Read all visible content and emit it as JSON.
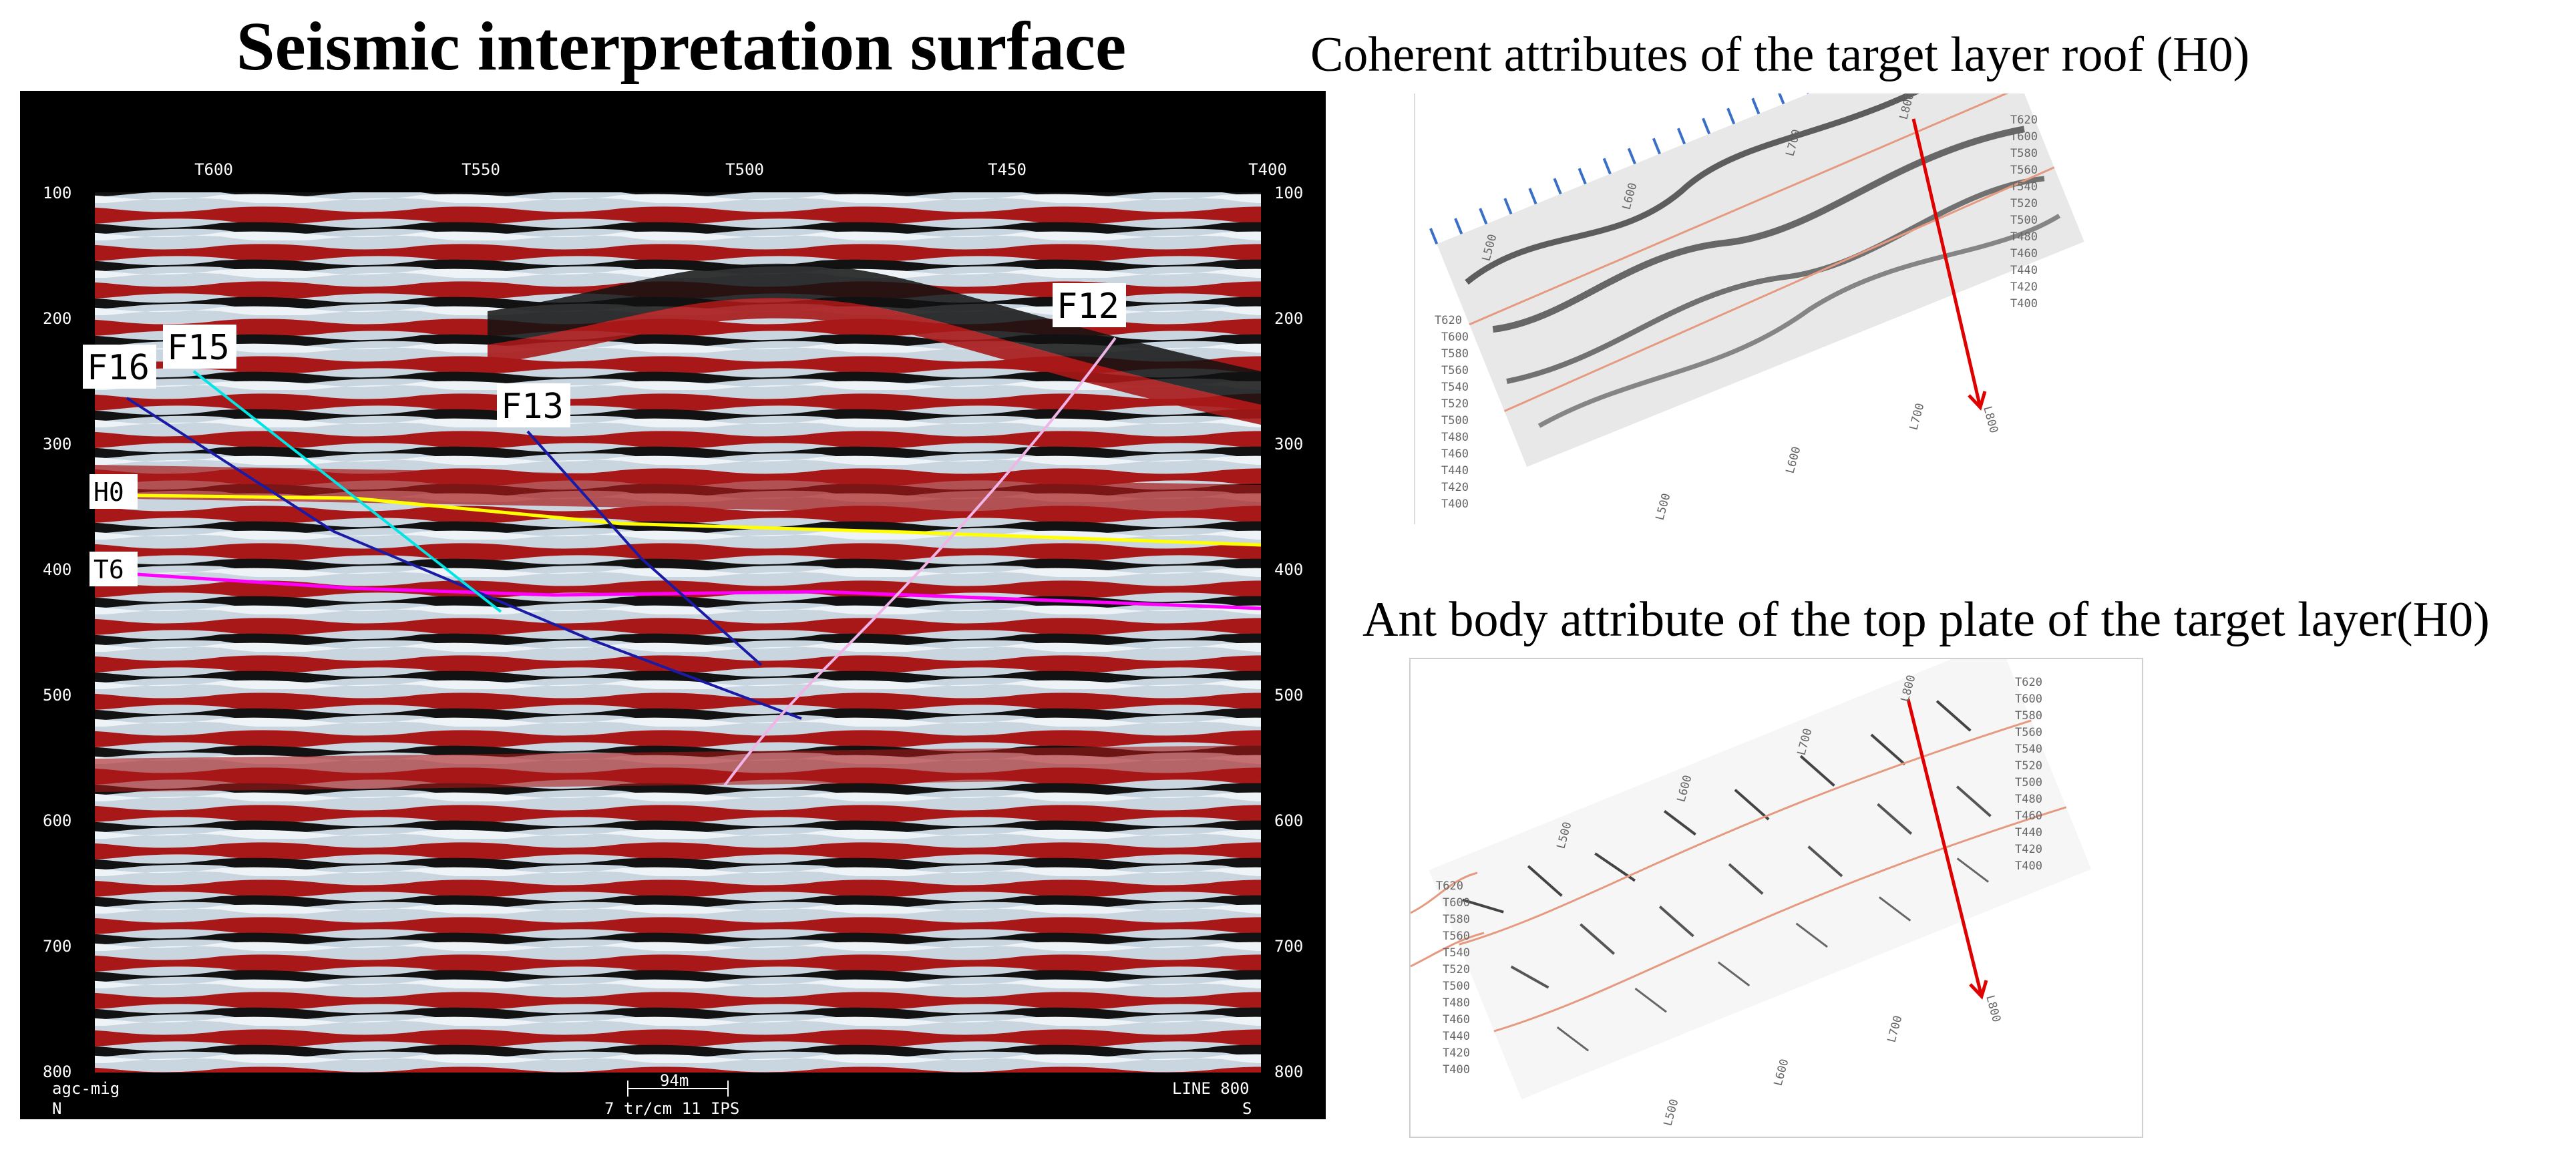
{
  "main_title": "Seismic interpretation surface",
  "section": {
    "top_ticks": [
      "T600",
      "T550",
      "T500",
      "T450",
      "T400"
    ],
    "time_ticks": [
      "100",
      "200",
      "300",
      "400",
      "500",
      "600",
      "700",
      "800"
    ],
    "horizons": [
      {
        "label": "H0",
        "color": "#ffff00"
      },
      {
        "label": "T6",
        "color": "#ff00ff"
      }
    ],
    "faults": [
      {
        "label": "F16",
        "color": "#1a1aa6"
      },
      {
        "label": "F15",
        "color": "#00e5e5"
      },
      {
        "label": "F13",
        "color": "#1a1aa6"
      },
      {
        "label": "F12",
        "color": "#f0b4e6"
      }
    ],
    "footer_left_1": "agc-mig",
    "footer_left_2": "N",
    "footer_scale": "94m",
    "footer_center": "7 tr/cm 11 IPS",
    "footer_right_1": "LINE 800",
    "footer_right_2": "S",
    "colors": {
      "background": "#000000",
      "red": "#b01c1c",
      "blue_white": "#d9e6f0"
    }
  },
  "map_coherent": {
    "title": "Coherent attributes of the target layer roof (H0)",
    "t_labels_right": [
      "T620",
      "T600",
      "T580",
      "T560",
      "T540",
      "T520",
      "T500",
      "T480",
      "T460",
      "T440",
      "T420",
      "T400"
    ],
    "t_labels_left": [
      "T620",
      "T600",
      "T580",
      "T560",
      "T540",
      "T520",
      "T500",
      "T480",
      "T460",
      "T440",
      "T420",
      "T400"
    ],
    "l_labels_top": [
      "L500",
      "L600",
      "L700",
      "L800"
    ],
    "l_labels_bottom": [
      "L500",
      "L600",
      "L700",
      "L800"
    ]
  },
  "map_ant": {
    "title": "Ant body attribute of the top plate of the target layer(H0)",
    "t_labels_right": [
      "T620",
      "T600",
      "T580",
      "T560",
      "T540",
      "T520",
      "T500",
      "T480",
      "T460",
      "T440",
      "T420",
      "T400"
    ],
    "t_labels_left": [
      "T620",
      "T600",
      "T580",
      "T560",
      "T540",
      "T520",
      "T500",
      "T480",
      "T460",
      "T440",
      "T420",
      "T400"
    ],
    "l_labels_top": [
      "L500",
      "L600",
      "L700",
      "L800"
    ],
    "l_labels_bottom": [
      "L500",
      "L600",
      "L700",
      "L800"
    ]
  }
}
